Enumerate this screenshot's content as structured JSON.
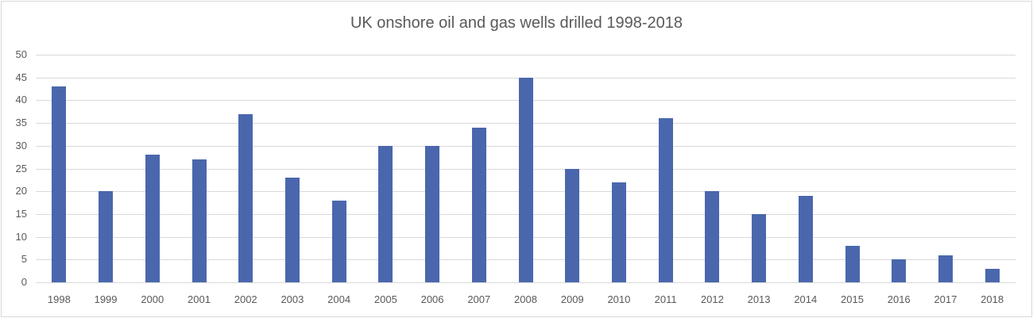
{
  "chart_data": {
    "type": "bar",
    "title": "UK onshore oil and gas wells drilled 1998-2018",
    "xlabel": "",
    "ylabel": "",
    "ylim": [
      0,
      50
    ],
    "yticks": [
      0,
      5,
      10,
      15,
      20,
      25,
      30,
      35,
      40,
      45,
      50
    ],
    "grid": true,
    "legend": "none",
    "bar_color": "#4a67ad",
    "categories": [
      "1998",
      "1999",
      "2000",
      "2001",
      "2002",
      "2003",
      "2004",
      "2005",
      "2006",
      "2007",
      "2008",
      "2009",
      "2010",
      "2011",
      "2012",
      "2013",
      "2014",
      "2015",
      "2016",
      "2017",
      "2018"
    ],
    "values": [
      43,
      20,
      28,
      27,
      37,
      23,
      18,
      30,
      30,
      34,
      45,
      25,
      22,
      36,
      20,
      15,
      19,
      8,
      5,
      6,
      3
    ]
  }
}
